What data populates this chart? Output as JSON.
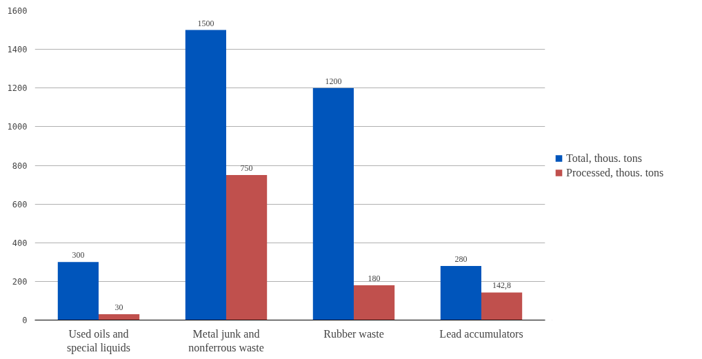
{
  "chart_data": {
    "type": "bar",
    "categories": [
      "Used oils and special liquids",
      "Metal junk and nonferrous waste",
      "Rubber waste",
      "Lead accumulators"
    ],
    "series": [
      {
        "name": "Total, thous. tons",
        "color": "#0055bb",
        "values": [
          300,
          1500,
          1200,
          280
        ],
        "value_labels": [
          "300",
          "1500",
          "1200",
          "280"
        ]
      },
      {
        "name": "Processed, thous. tons",
        "color": "#c0504d",
        "values": [
          30,
          750,
          180,
          142.8
        ],
        "value_labels": [
          "30",
          "750",
          "180",
          "142,8"
        ]
      }
    ],
    "ylim": [
      0,
      1600
    ],
    "yticks": [
      0,
      200,
      400,
      600,
      800,
      1000,
      1200,
      1400,
      1600
    ],
    "grid": "y",
    "legend": "right"
  }
}
